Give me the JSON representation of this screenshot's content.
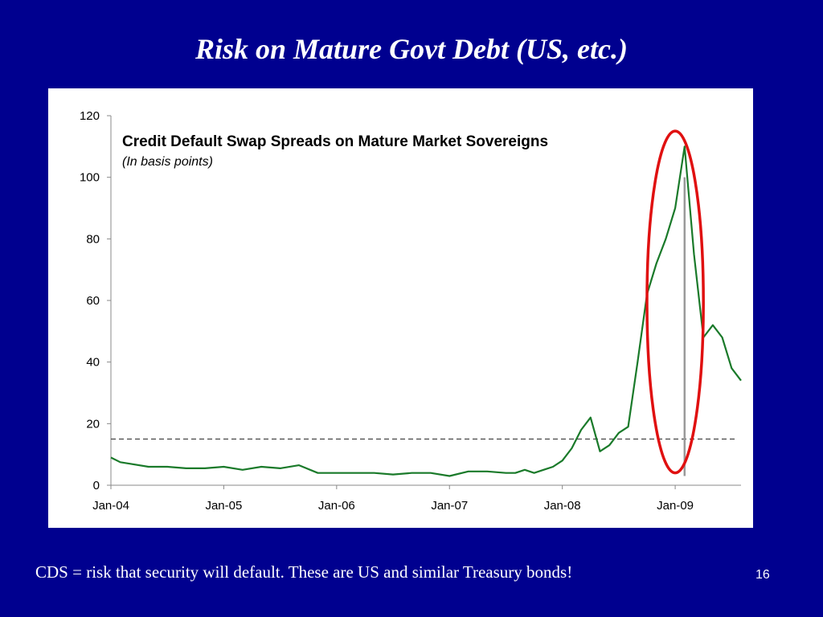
{
  "slide": {
    "title": "Risk on Mature Govt Debt (US, etc.)",
    "footer": "CDS = risk that security will default. These are US and similar Treasury bonds!",
    "page_number": "16"
  },
  "colors": {
    "background": "#00008f",
    "line": "#1a7a2a",
    "highlight": "#e01010",
    "marker": "#999999",
    "reference": "#444444"
  },
  "chart_data": {
    "type": "line",
    "title": "Credit Default Swap Spreads on Mature Market Sovereigns",
    "subtitle": "(In basis points)",
    "xlabel": "",
    "ylabel": "",
    "ylim": [
      0,
      120
    ],
    "xlim": [
      "2004-01",
      "2009-08"
    ],
    "y_ticks": [
      0,
      20,
      40,
      60,
      80,
      100,
      120
    ],
    "x_ticks": [
      "Jan-04",
      "Jan-05",
      "Jan-06",
      "Jan-07",
      "Jan-08",
      "Jan-09"
    ],
    "reference_line": 15,
    "marker_date": "2009-02",
    "highlight": {
      "from_date": "2008-10",
      "to_date": "2009-04",
      "y_range": [
        4,
        115
      ]
    },
    "series": [
      {
        "x": [
          "2004-01",
          "2004-02",
          "2004-03",
          "2004-05",
          "2004-07",
          "2004-09",
          "2004-11",
          "2005-01",
          "2005-03",
          "2005-05",
          "2005-07",
          "2005-09",
          "2005-11",
          "2006-01",
          "2006-03",
          "2006-05",
          "2006-07",
          "2006-09",
          "2006-11",
          "2007-01",
          "2007-03",
          "2007-05",
          "2007-07",
          "2007-08",
          "2007-09",
          "2007-10",
          "2007-11",
          "2007-12",
          "2008-01",
          "2008-02",
          "2008-03",
          "2008-04",
          "2008-05",
          "2008-06",
          "2008-07",
          "2008-08",
          "2008-09",
          "2008-10",
          "2008-11",
          "2008-12",
          "2009-01",
          "2009-02",
          "2009-03",
          "2009-04",
          "2009-05",
          "2009-06",
          "2009-07",
          "2009-08"
        ],
        "values": [
          9,
          7.5,
          7,
          6,
          6,
          5.5,
          5.5,
          6,
          5,
          6,
          5.5,
          6.5,
          4,
          4,
          4,
          4,
          3.5,
          4,
          4,
          3,
          4.5,
          4.5,
          4,
          4,
          5,
          4,
          5,
          6,
          8,
          12,
          18,
          22,
          11,
          13,
          17,
          19,
          40,
          62,
          72,
          80,
          90,
          110,
          75,
          48,
          52,
          48,
          38,
          34
        ]
      }
    ]
  }
}
